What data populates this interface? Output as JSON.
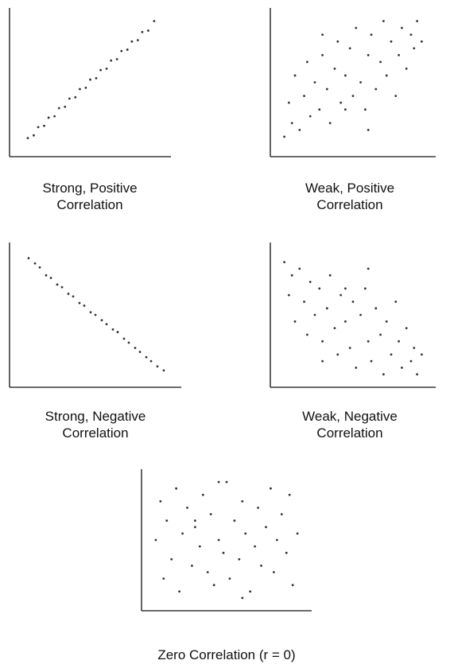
{
  "chart_data": [
    {
      "type": "scatter",
      "title": "Strong, Positive Correlation",
      "xlim": [
        0,
        100
      ],
      "ylim": [
        0,
        100
      ],
      "x": [
        8,
        12,
        15,
        19,
        22,
        26,
        29,
        33,
        36,
        40,
        43,
        47,
        50,
        54,
        57,
        61,
        64,
        68,
        71,
        75,
        78,
        82,
        85,
        89,
        93
      ],
      "y": [
        9,
        11,
        17,
        18,
        24,
        25,
        31,
        32,
        38,
        39,
        45,
        46,
        52,
        53,
        59,
        60,
        66,
        67,
        73,
        74,
        80,
        81,
        87,
        88,
        95
      ]
    },
    {
      "type": "scatter",
      "title": "Weak, Positive Correlation",
      "xlim": [
        0,
        100
      ],
      "ylim": [
        0,
        100
      ],
      "x": [
        5,
        8,
        10,
        12,
        15,
        18,
        20,
        22,
        25,
        28,
        30,
        33,
        35,
        38,
        40,
        42,
        45,
        48,
        50,
        52,
        55,
        58,
        60,
        62,
        65,
        68,
        70,
        72,
        75,
        78,
        80,
        82,
        85,
        88,
        90,
        92,
        95,
        30,
        60,
        45
      ],
      "y": [
        10,
        35,
        20,
        55,
        15,
        40,
        65,
        25,
        50,
        30,
        70,
        45,
        20,
        60,
        80,
        35,
        55,
        75,
        40,
        90,
        50,
        30,
        70,
        85,
        45,
        65,
        95,
        55,
        80,
        40,
        70,
        90,
        60,
        85,
        75,
        95,
        80,
        85,
        15,
        30
      ]
    },
    {
      "type": "scatter",
      "title": "Strong, Negative Correlation",
      "xlim": [
        0,
        100
      ],
      "ylim": [
        0,
        100
      ],
      "x": [
        8,
        12,
        15,
        19,
        22,
        26,
        29,
        33,
        36,
        40,
        43,
        47,
        50,
        54,
        57,
        61,
        64,
        68,
        71,
        75,
        78,
        82,
        85,
        89,
        93
      ],
      "y": [
        93,
        89,
        86,
        80,
        78,
        73,
        71,
        66,
        64,
        59,
        57,
        52,
        50,
        46,
        43,
        39,
        37,
        32,
        29,
        25,
        22,
        18,
        15,
        11,
        8
      ]
    },
    {
      "type": "scatter",
      "title": "Weak, Negative Correlation",
      "xlim": [
        0,
        100
      ],
      "ylim": [
        0,
        100
      ],
      "x": [
        5,
        8,
        10,
        12,
        15,
        18,
        20,
        22,
        25,
        28,
        30,
        33,
        35,
        38,
        40,
        42,
        45,
        48,
        50,
        52,
        55,
        58,
        60,
        62,
        65,
        68,
        70,
        72,
        75,
        78,
        80,
        82,
        85,
        88,
        90,
        92,
        95,
        30,
        60,
        45
      ],
      "y": [
        90,
        65,
        80,
        45,
        85,
        60,
        35,
        75,
        50,
        70,
        30,
        55,
        80,
        40,
        20,
        65,
        45,
        25,
        60,
        10,
        50,
        70,
        30,
        15,
        55,
        35,
        5,
        45,
        20,
        60,
        30,
        10,
        40,
        15,
        25,
        5,
        20,
        15,
        85,
        70
      ]
    },
    {
      "type": "scatter",
      "title": "Zero Correlation (r = 0)",
      "xlim": [
        0,
        100
      ],
      "ylim": [
        0,
        100
      ],
      "x": [
        5,
        8,
        10,
        12,
        15,
        18,
        20,
        22,
        25,
        28,
        30,
        33,
        35,
        38,
        40,
        42,
        45,
        48,
        50,
        52,
        55,
        58,
        60,
        62,
        65,
        68,
        70,
        72,
        75,
        78,
        80,
        82,
        85,
        88,
        90,
        92,
        95,
        30,
        60,
        45
      ],
      "y": [
        50,
        80,
        20,
        65,
        35,
        90,
        10,
        55,
        75,
        30,
        60,
        45,
        85,
        25,
        70,
        15,
        50,
        40,
        95,
        20,
        65,
        35,
        80,
        55,
        10,
        45,
        75,
        30,
        60,
        90,
        25,
        50,
        70,
        40,
        85,
        15,
        55,
        65,
        5,
        95
      ]
    }
  ]
}
